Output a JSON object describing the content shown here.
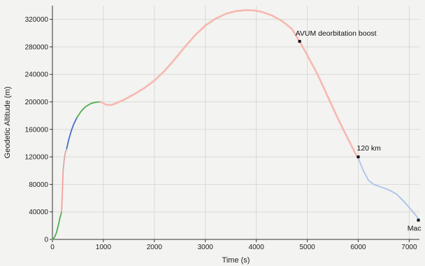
{
  "chart_data": {
    "type": "line",
    "title": "",
    "xlabel": "Time (s)",
    "ylabel": "Geodetic Altitude (m)",
    "xlim": [
      0,
      7200
    ],
    "ylim": [
      0,
      340000
    ],
    "x_ticks": [
      0,
      1000,
      2000,
      3000,
      4000,
      5000,
      6000,
      7000
    ],
    "y_ticks": [
      0,
      40000,
      80000,
      120000,
      160000,
      200000,
      240000,
      280000,
      320000
    ],
    "grid": true,
    "legend": "none",
    "series": [
      {
        "color": "#4fae4f",
        "points": [
          [
            0,
            0
          ],
          [
            40,
            3000
          ],
          [
            80,
            10000
          ],
          [
            120,
            22000
          ],
          [
            150,
            32000
          ],
          [
            180,
            40000
          ]
        ]
      },
      {
        "color": "#f4a09a",
        "points": [
          [
            180,
            40000
          ],
          [
            190,
            60000
          ],
          [
            200,
            80000
          ],
          [
            210,
            100000
          ]
        ]
      },
      {
        "color": "#d8a8a8",
        "points": [
          [
            210,
            100000
          ],
          [
            230,
            115000
          ],
          [
            250,
            125000
          ],
          [
            280,
            132000
          ]
        ]
      },
      {
        "color": "#3f6fcc",
        "points": [
          [
            280,
            132000
          ],
          [
            320,
            145000
          ],
          [
            370,
            158000
          ],
          [
            420,
            168000
          ],
          [
            480,
            177000
          ]
        ]
      },
      {
        "color": "#4fae4f",
        "points": [
          [
            480,
            177000
          ],
          [
            560,
            186000
          ],
          [
            650,
            193000
          ],
          [
            750,
            197500
          ],
          [
            850,
            199500
          ],
          [
            950,
            200000
          ]
        ]
      },
      {
        "color": "#f6b8b0",
        "points": [
          [
            950,
            200000
          ],
          [
            1050,
            196000
          ],
          [
            1150,
            195500
          ],
          [
            1250,
            198000
          ],
          [
            1400,
            203000
          ],
          [
            1600,
            211000
          ],
          [
            1800,
            220000
          ],
          [
            2000,
            231000
          ],
          [
            2200,
            245000
          ],
          [
            2400,
            262000
          ],
          [
            2600,
            280000
          ],
          [
            2800,
            297000
          ],
          [
            3000,
            311000
          ],
          [
            3200,
            321000
          ],
          [
            3400,
            328000
          ],
          [
            3600,
            332000
          ],
          [
            3800,
            333500
          ],
          [
            3950,
            333000
          ],
          [
            4100,
            331000
          ],
          [
            4300,
            326000
          ],
          [
            4500,
            318000
          ],
          [
            4700,
            306000
          ],
          [
            4850,
            288000
          ],
          [
            5000,
            268000
          ],
          [
            5200,
            240000
          ],
          [
            5400,
            208000
          ],
          [
            5600,
            176000
          ],
          [
            5800,
            146000
          ],
          [
            5950,
            124000
          ],
          [
            6000,
            118000
          ]
        ]
      },
      {
        "color": "#a9c3ec",
        "points": [
          [
            6000,
            118000
          ],
          [
            6100,
            100000
          ],
          [
            6200,
            86000
          ],
          [
            6300,
            80000
          ],
          [
            6450,
            76000
          ],
          [
            6600,
            72000
          ],
          [
            6750,
            66000
          ],
          [
            6900,
            55000
          ],
          [
            7050,
            42000
          ],
          [
            7150,
            33000
          ],
          [
            7200,
            28000
          ]
        ]
      }
    ],
    "annotations": [
      {
        "label": "AVUM deorbitation boost",
        "x": 4850,
        "y": 288000
      },
      {
        "label": "120 km",
        "x": 6000,
        "y": 120000
      },
      {
        "label": "Mac",
        "x": 7180,
        "y": 28000
      }
    ]
  }
}
